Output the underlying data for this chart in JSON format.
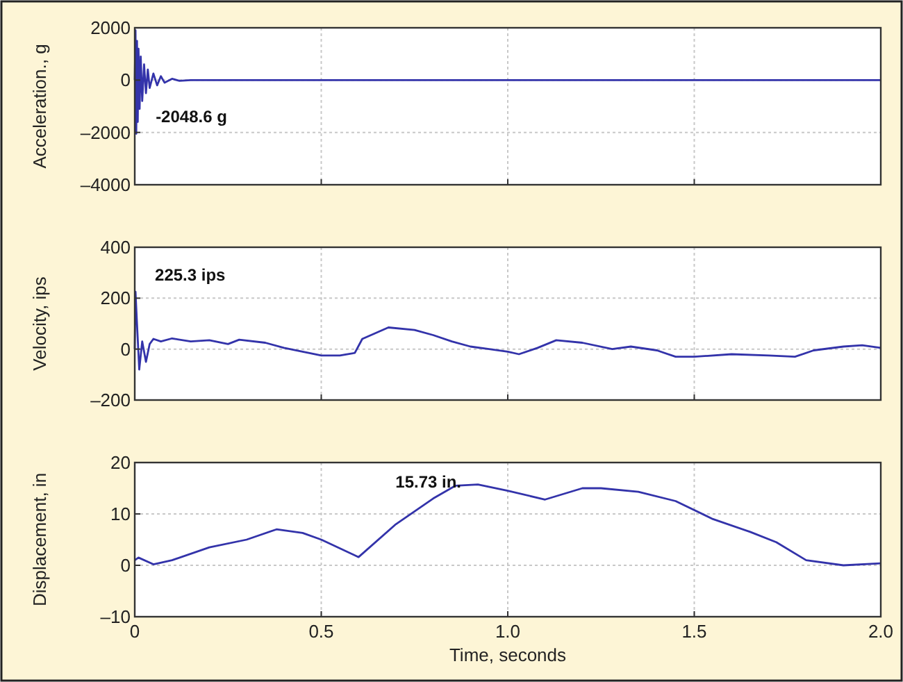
{
  "chart_data": [
    {
      "type": "line",
      "ylabel": "Acceleration., g",
      "x": [
        0,
        0.002,
        0.004,
        0.006,
        0.008,
        0.01,
        0.013,
        0.016,
        0.02,
        0.025,
        0.03,
        0.035,
        0.04,
        0.05,
        0.06,
        0.07,
        0.08,
        0.1,
        0.12,
        0.15,
        0.3,
        2.0
      ],
      "series": [
        {
          "color": "#3333aa",
          "values": [
            0,
            1900,
            -2048.6,
            1500,
            -1600,
            1200,
            -1100,
            900,
            -800,
            600,
            -500,
            400,
            -300,
            250,
            -200,
            150,
            -100,
            50,
            -30,
            0,
            0,
            0
          ]
        }
      ],
      "xlim": [
        0,
        2
      ],
      "xticks": [
        {
          "value": 0,
          "label": null
        },
        {
          "value": 0.5,
          "label": null
        },
        {
          "value": 1,
          "label": null
        },
        {
          "value": 1.5,
          "label": null
        },
        {
          "value": 2,
          "label": null
        }
      ],
      "ylim": [
        -4000,
        2000
      ],
      "yticks": [
        {
          "value": -4000,
          "label": "–4000"
        },
        {
          "value": -2000,
          "label": "–2000"
        },
        0,
        2000
      ],
      "grid": true,
      "tick_labels": "y",
      "annotations": [
        {
          "text": "-2048.6 g",
          "x": 0.004,
          "y": -2048.6
        }
      ]
    },
    {
      "type": "line",
      "ylabel": "Velocity, ips",
      "x": [
        0,
        0.002,
        0.006,
        0.012,
        0.02,
        0.03,
        0.04,
        0.05,
        0.07,
        0.1,
        0.15,
        0.2,
        0.25,
        0.28,
        0.35,
        0.4,
        0.45,
        0.5,
        0.55,
        0.59,
        0.61,
        0.68,
        0.75,
        0.8,
        0.85,
        0.9,
        0.95,
        1.0,
        1.03,
        1.08,
        1.13,
        1.2,
        1.28,
        1.33,
        1.4,
        1.45,
        1.5,
        1.6,
        1.7,
        1.77,
        1.82,
        1.9,
        1.95,
        2.0
      ],
      "series": [
        {
          "color": "#3333aa",
          "values": [
            0,
            225.3,
            100,
            -80,
            30,
            -50,
            20,
            40,
            30,
            42,
            30,
            35,
            20,
            37,
            25,
            5,
            -10,
            -25,
            -25,
            -15,
            40,
            85,
            75,
            55,
            30,
            10,
            0,
            -10,
            -20,
            5,
            35,
            25,
            0,
            10,
            -5,
            -30,
            -30,
            -20,
            -25,
            -30,
            -5,
            10,
            15,
            5
          ]
        }
      ],
      "xlim": [
        0,
        2
      ],
      "xticks": [
        {
          "value": 0,
          "label": null
        },
        {
          "value": 0.5,
          "label": null
        },
        {
          "value": 1,
          "label": null
        },
        {
          "value": 1.5,
          "label": null
        },
        {
          "value": 2,
          "label": null
        }
      ],
      "ylim": [
        -200,
        400
      ],
      "yticks": [
        {
          "value": -200,
          "label": "–200"
        },
        0,
        200,
        400
      ],
      "grid": true,
      "tick_labels": "y",
      "annotations": [
        {
          "text": "225.3 ips",
          "x": 0.002,
          "y": 225.3
        }
      ]
    },
    {
      "type": "line",
      "xlabel": "Time, seconds",
      "ylabel": "Displacement, in",
      "x": [
        0,
        0.01,
        0.05,
        0.1,
        0.2,
        0.3,
        0.38,
        0.45,
        0.5,
        0.6,
        0.7,
        0.8,
        0.86,
        0.92,
        1.0,
        1.1,
        1.2,
        1.25,
        1.35,
        1.45,
        1.55,
        1.65,
        1.72,
        1.8,
        1.9,
        2.0
      ],
      "series": [
        {
          "color": "#3333aa",
          "values": [
            1,
            1.5,
            0.2,
            1,
            3.5,
            5,
            7,
            6.3,
            5,
            1.6,
            8,
            13,
            15.5,
            15.73,
            14.5,
            12.8,
            15,
            15,
            14.3,
            12.5,
            9,
            6.5,
            4.5,
            1,
            0,
            0.4
          ]
        }
      ],
      "xlim": [
        0,
        2
      ],
      "xticks": [
        0,
        0.5,
        {
          "value": 1,
          "label": "1.0"
        },
        1.5,
        {
          "value": 2,
          "label": "2.0"
        }
      ],
      "ylim": [
        -10,
        20
      ],
      "yticks": [
        {
          "value": -10,
          "label": "–10"
        },
        0,
        10,
        20
      ],
      "grid": true,
      "annotations": [
        {
          "text": "15.73 in.",
          "x": 0.92,
          "y": 15.73
        }
      ]
    }
  ]
}
